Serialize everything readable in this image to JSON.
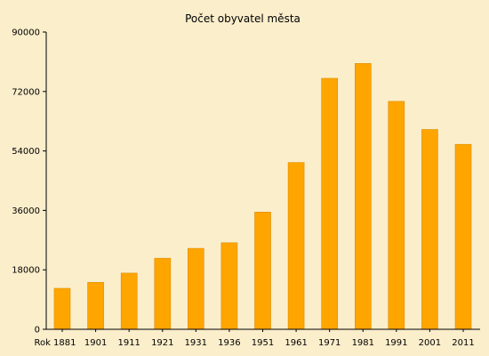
{
  "chart_data": {
    "type": "bar",
    "title": "Počet obyvatel města",
    "categories": [
      "Rok 1881",
      "1901",
      "1911",
      "1921",
      "1931",
      "1936",
      "1951",
      "1961",
      "1971",
      "1981",
      "1991",
      "2001",
      "2011"
    ],
    "values": [
      12400,
      14200,
      17000,
      21500,
      24500,
      26200,
      35500,
      50500,
      76000,
      80500,
      69000,
      60500,
      56000
    ],
    "ylim": [
      0,
      90000
    ],
    "yticks": [
      0,
      18000,
      36000,
      54000,
      72000,
      90000
    ],
    "xlabel": "",
    "ylabel": "",
    "grid": false,
    "legend": "none",
    "colors": {
      "background": "#fbeecb",
      "bar_fill": "#ffa500",
      "bar_stroke": "#d98c00",
      "axis": "#000000"
    }
  }
}
